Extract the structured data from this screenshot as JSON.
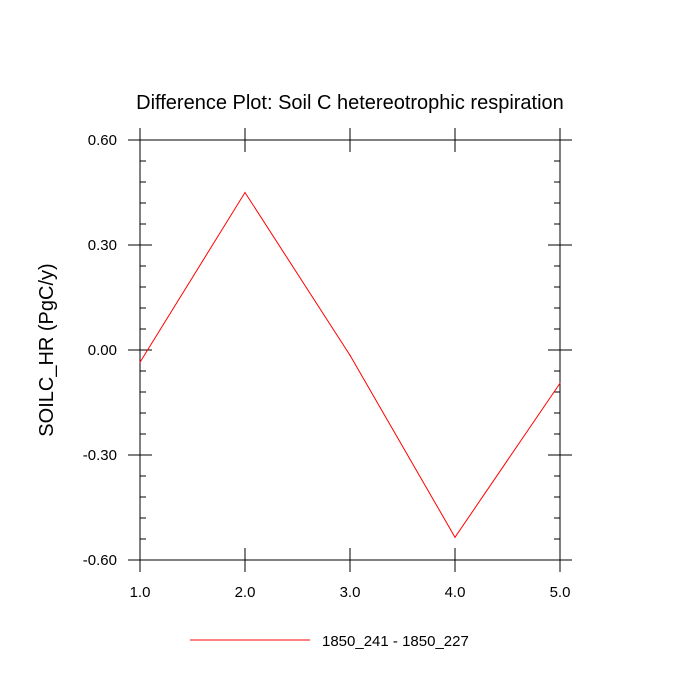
{
  "chart_data": {
    "type": "line",
    "title": "Difference Plot: Soil C hetereotrophic respiration",
    "xlabel": "",
    "ylabel": "SOILC_HR  (PgC/y)",
    "xlim": [
      1.0,
      5.0
    ],
    "ylim": [
      -0.6,
      0.6
    ],
    "x_ticks": [
      "1.0",
      "2.0",
      "3.0",
      "4.0",
      "5.0"
    ],
    "y_ticks": [
      "-0.60",
      "-0.30",
      "0.00",
      "0.30",
      "0.60"
    ],
    "x_tick_values": [
      1.0,
      2.0,
      3.0,
      4.0,
      5.0
    ],
    "y_tick_values": [
      -0.6,
      -0.3,
      0.0,
      0.3,
      0.6
    ],
    "grid": false,
    "legend_position": "bottom",
    "series": [
      {
        "name": "1850_241 - 1850_227",
        "color": "#ff0000",
        "x": [
          1.0,
          2.0,
          3.0,
          4.0,
          5.0
        ],
        "y": [
          -0.035,
          0.45,
          -0.015,
          -0.535,
          -0.095
        ]
      }
    ]
  }
}
